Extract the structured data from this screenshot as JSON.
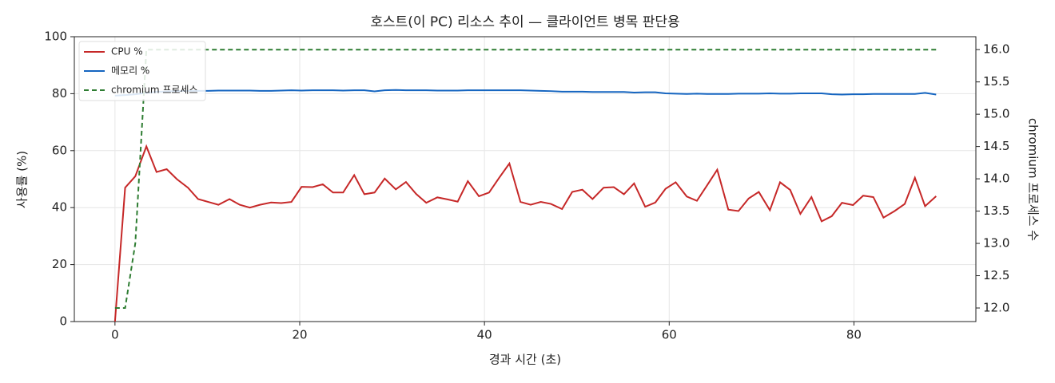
{
  "chart_data": {
    "type": "line",
    "title": "호스트(이 PC) 리소스 추이 — 클라이언트 병목 판단용",
    "xlabel": "경과 시간 (초)",
    "ylabel": "사용률 (%)",
    "y2label": "chromium 프로세스 수",
    "x": [
      0,
      1.1,
      2.2,
      3.4,
      4.5,
      5.6,
      6.7,
      7.9,
      9.0,
      10.1,
      11.2,
      12.4,
      13.5,
      14.6,
      15.7,
      16.9,
      18.0,
      19.1,
      20.2,
      21.4,
      22.5,
      23.6,
      24.7,
      25.9,
      27.0,
      28.1,
      29.2,
      30.4,
      31.5,
      32.6,
      33.7,
      34.9,
      36.0,
      37.1,
      38.2,
      39.4,
      40.5,
      41.6,
      42.7,
      43.9,
      45.0,
      46.1,
      47.2,
      48.4,
      49.5,
      50.6,
      51.7,
      52.9,
      54.0,
      55.1,
      56.2,
      57.4,
      58.5,
      59.6,
      60.7,
      61.9,
      63.0,
      64.1,
      65.2,
      66.4,
      67.5,
      68.6,
      69.7,
      70.9,
      72.0,
      73.1,
      74.2,
      75.4,
      76.5,
      77.6,
      78.7,
      79.9,
      81.0,
      82.1,
      83.2,
      84.4,
      85.5,
      86.6,
      87.7,
      88.9
    ],
    "series": [
      {
        "name": "CPU %",
        "color": "#c62828",
        "dash": false,
        "values": [
          0,
          47,
          51,
          61.5,
          52.5,
          53.5,
          50,
          47,
          43,
          42,
          41,
          43,
          41,
          40,
          41,
          41.8,
          41.6,
          42,
          47.3,
          47.2,
          48.2,
          45.3,
          45.3,
          51.4,
          44.7,
          45.3,
          50.2,
          46.4,
          49,
          44.8,
          41.7,
          43.6,
          42.9,
          42.1,
          49.3,
          44,
          45.3,
          50.5,
          55.5,
          42,
          41,
          42,
          41.3,
          39.5,
          45.5,
          46.3,
          43,
          47,
          47.2,
          44.7,
          48.5,
          40.3,
          41.8,
          46.6,
          48.9,
          43.9,
          42.4,
          47.8,
          53.3,
          39.3,
          38.8,
          43.2,
          45.5,
          39.1,
          48.9,
          46.2,
          37.8,
          43.7,
          35.2,
          37,
          41.7,
          40.9,
          44.2,
          43.7,
          36.5,
          38.8,
          41.3,
          50.5,
          40.5,
          44
        ]
      },
      {
        "name": "메모리 %",
        "color": "#1565c0",
        "dash": false,
        "values": [
          79.3,
          79.5,
          79.8,
          80.3,
          80.6,
          80.8,
          80.9,
          81,
          81,
          81,
          81.1,
          81.1,
          81.1,
          81.1,
          81,
          81,
          81.1,
          81.2,
          81.1,
          81.2,
          81.2,
          81.2,
          81.1,
          81.2,
          81.2,
          80.8,
          81.2,
          81.3,
          81.2,
          81.2,
          81.2,
          81.1,
          81.1,
          81.1,
          81.2,
          81.2,
          81.2,
          81.2,
          81.2,
          81.2,
          81.1,
          81,
          80.9,
          80.7,
          80.7,
          80.7,
          80.6,
          80.6,
          80.6,
          80.6,
          80.4,
          80.5,
          80.5,
          80.1,
          80,
          79.9,
          80,
          79.9,
          79.9,
          79.9,
          80,
          80,
          80,
          80.1,
          80,
          80,
          80.1,
          80.1,
          80.1,
          79.8,
          79.7,
          79.8,
          79.8,
          79.9,
          79.9,
          79.9,
          79.9,
          79.9,
          80.3,
          79.7
        ]
      },
      {
        "name": "chromium 프로세스",
        "color": "#2e7d32",
        "dash": true,
        "axis": "y2",
        "values": [
          12,
          12,
          13,
          16,
          16,
          16,
          16,
          16,
          16,
          16,
          16,
          16,
          16,
          16,
          16,
          16,
          16,
          16,
          16,
          16,
          16,
          16,
          16,
          16,
          16,
          16,
          16,
          16,
          16,
          16,
          16,
          16,
          16,
          16,
          16,
          16,
          16,
          16,
          16,
          16,
          16,
          16,
          16,
          16,
          16,
          16,
          16,
          16,
          16,
          16,
          16,
          16,
          16,
          16,
          16,
          16,
          16,
          16,
          16,
          16,
          16,
          16,
          16,
          16,
          16,
          16,
          16,
          16,
          16,
          16,
          16,
          16,
          16,
          16,
          16,
          16,
          16,
          16,
          16,
          16
        ]
      }
    ],
    "xlim": [
      -4.4,
      93.2
    ],
    "xticks": [
      0,
      20,
      40,
      60,
      80
    ],
    "ylim": [
      0,
      100
    ],
    "yticks": [
      0,
      20,
      40,
      60,
      80,
      100
    ],
    "y2lim": [
      11.79,
      16.2
    ],
    "y2ticks": [
      {
        "value": 12,
        "label": "12.0"
      },
      {
        "value": 12.5,
        "label": "12.5"
      },
      {
        "value": 13,
        "label": "13.0"
      },
      {
        "value": 13.5,
        "label": "13.5"
      },
      {
        "value": 14,
        "label": "14.0"
      },
      {
        "value": 14.5,
        "label": "14.5"
      },
      {
        "value": 15,
        "label": "15.0"
      },
      {
        "value": 15.5,
        "label": "15.5"
      },
      {
        "value": 16,
        "label": "16.0"
      }
    ],
    "grid": true,
    "legend": "upper left"
  }
}
